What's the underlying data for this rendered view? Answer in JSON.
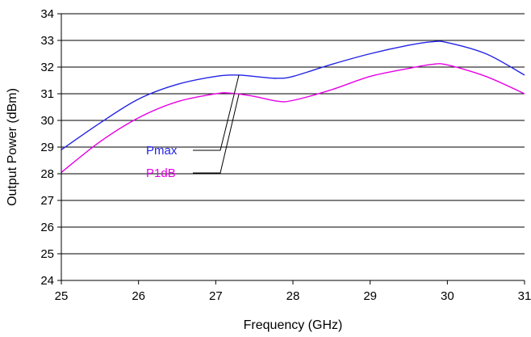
{
  "chart_data": {
    "type": "line",
    "title": "",
    "xlabel": "Frequency (GHz)",
    "ylabel": "Output Power (dBm)",
    "xlim": [
      25,
      31
    ],
    "ylim": [
      24,
      34
    ],
    "xticks": [
      "25",
      "26",
      "27",
      "28",
      "29",
      "30",
      "31"
    ],
    "yticks": [
      "24",
      "25",
      "26",
      "27",
      "28",
      "29",
      "30",
      "31",
      "32",
      "33",
      "34"
    ],
    "grid": "horizontal",
    "series": [
      {
        "name": "Pmax",
        "color": "#2323e6",
        "x": [
          25.0,
          25.5,
          26.0,
          26.5,
          27.0,
          27.3,
          27.6,
          27.8,
          28.0,
          28.5,
          29.0,
          29.5,
          29.8,
          30.0,
          30.5,
          31.0
        ],
        "y": [
          28.9,
          29.9,
          30.8,
          31.35,
          31.65,
          31.7,
          31.62,
          31.58,
          31.65,
          32.1,
          32.5,
          32.82,
          32.95,
          32.92,
          32.5,
          31.7
        ]
      },
      {
        "name": "P1dB",
        "color": "#e600e6",
        "x": [
          25.0,
          25.5,
          26.0,
          26.5,
          27.0,
          27.2,
          27.5,
          27.8,
          28.0,
          28.5,
          29.0,
          29.5,
          29.8,
          30.0,
          30.5,
          31.0
        ],
        "y": [
          28.05,
          29.2,
          30.1,
          30.7,
          31.0,
          31.02,
          30.9,
          30.72,
          30.75,
          31.15,
          31.65,
          31.95,
          32.1,
          32.08,
          31.65,
          31.0
        ]
      }
    ],
    "annotations": [
      {
        "text": "Pmax",
        "series": 0,
        "target_x": 27.3
      },
      {
        "text": "P1dB",
        "series": 1,
        "target_x": 27.3
      }
    ]
  }
}
